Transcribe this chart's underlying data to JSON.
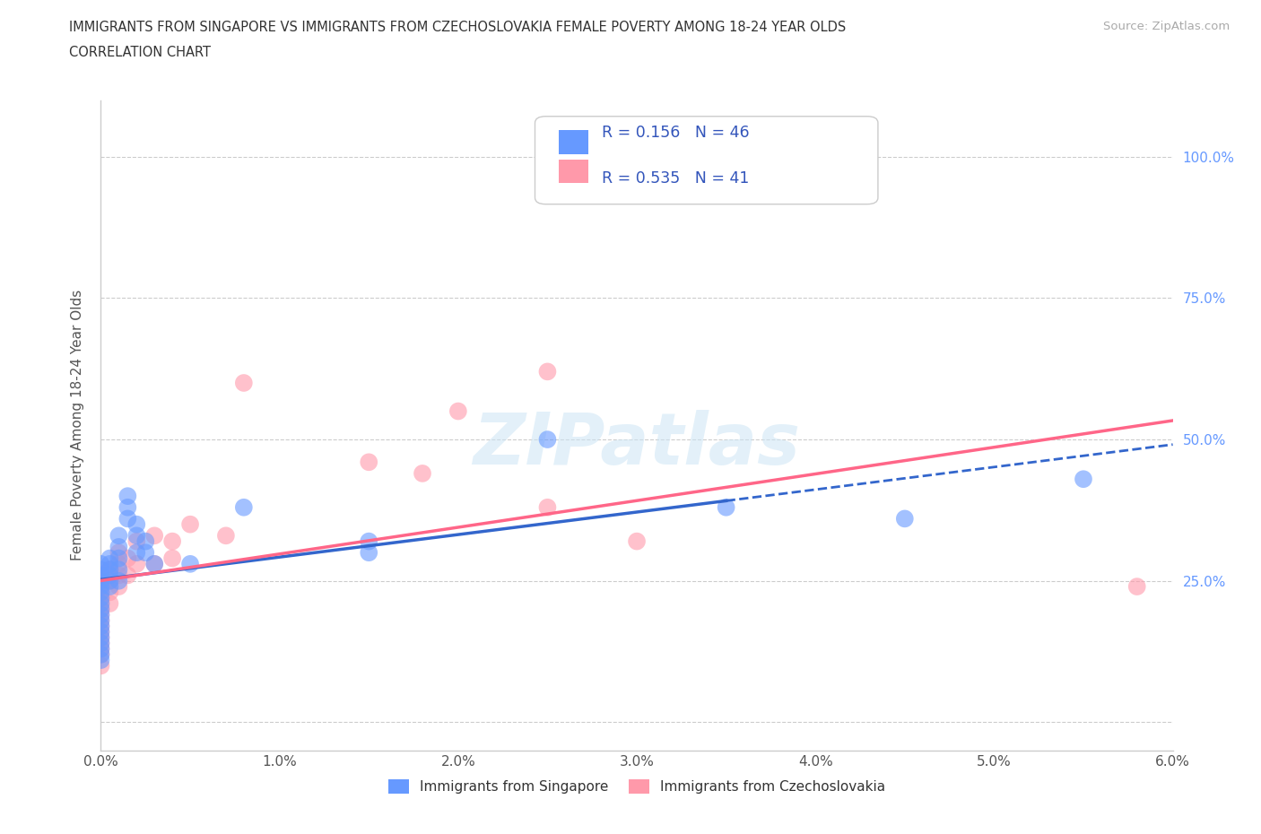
{
  "title_line1": "IMMIGRANTS FROM SINGAPORE VS IMMIGRANTS FROM CZECHOSLOVAKIA FEMALE POVERTY AMONG 18-24 YEAR OLDS",
  "title_line2": "CORRELATION CHART",
  "source_text": "Source: ZipAtlas.com",
  "ylabel": "Female Poverty Among 18-24 Year Olds",
  "xlim": [
    0.0,
    0.06
  ],
  "ylim": [
    -0.05,
    1.1
  ],
  "xtick_labels": [
    "0.0%",
    "1.0%",
    "2.0%",
    "3.0%",
    "4.0%",
    "5.0%",
    "6.0%"
  ],
  "xtick_values": [
    0.0,
    0.01,
    0.02,
    0.03,
    0.04,
    0.05,
    0.06
  ],
  "ytick_labels": [
    "0.0%",
    "25.0%",
    "50.0%",
    "75.0%",
    "100.0%"
  ],
  "ytick_values": [
    0.0,
    0.25,
    0.5,
    0.75,
    1.0
  ],
  "right_ytick_values": [
    1.0,
    0.75,
    0.5,
    0.25
  ],
  "right_ytick_labels": [
    "100.0%",
    "75.0%",
    "50.0%",
    "25.0%"
  ],
  "watermark": "ZIPatlas",
  "legend_singapore_label": "Immigrants from Singapore",
  "legend_czechoslovakia_label": "Immigrants from Czechoslovakia",
  "R_singapore": 0.156,
  "N_singapore": 46,
  "R_czechoslovakia": 0.535,
  "N_czechoslovakia": 41,
  "color_singapore": "#6699ff",
  "color_czechoslovakia": "#ff99aa",
  "color_singapore_line": "#3366cc",
  "color_czechoslovakia_line": "#ff6688",
  "singapore_x": [
    0.0,
    0.0,
    0.0,
    0.0,
    0.0,
    0.0,
    0.0,
    0.0,
    0.0,
    0.0,
    0.0,
    0.0,
    0.0,
    0.0,
    0.0,
    0.0,
    0.0,
    0.0,
    0.0005,
    0.0005,
    0.0005,
    0.0005,
    0.0005,
    0.0005,
    0.001,
    0.001,
    0.001,
    0.001,
    0.001,
    0.0015,
    0.0015,
    0.0015,
    0.002,
    0.002,
    0.002,
    0.0025,
    0.0025,
    0.003,
    0.005,
    0.008,
    0.015,
    0.015,
    0.025,
    0.035,
    0.045,
    0.055
  ],
  "singapore_y": [
    0.28,
    0.27,
    0.26,
    0.25,
    0.24,
    0.23,
    0.22,
    0.21,
    0.2,
    0.19,
    0.18,
    0.17,
    0.16,
    0.15,
    0.14,
    0.13,
    0.12,
    0.11,
    0.29,
    0.28,
    0.27,
    0.26,
    0.25,
    0.24,
    0.33,
    0.31,
    0.29,
    0.27,
    0.25,
    0.4,
    0.38,
    0.36,
    0.35,
    0.33,
    0.3,
    0.32,
    0.3,
    0.28,
    0.28,
    0.38,
    0.32,
    0.3,
    0.5,
    0.38,
    0.36,
    0.43
  ],
  "czechoslovakia_x": [
    0.0,
    0.0,
    0.0,
    0.0,
    0.0,
    0.0,
    0.0,
    0.0,
    0.0,
    0.0,
    0.0,
    0.0,
    0.0,
    0.0,
    0.0,
    0.0005,
    0.0005,
    0.0005,
    0.0005,
    0.001,
    0.001,
    0.001,
    0.001,
    0.0015,
    0.0015,
    0.002,
    0.002,
    0.003,
    0.003,
    0.004,
    0.004,
    0.005,
    0.007,
    0.008,
    0.015,
    0.018,
    0.02,
    0.025,
    0.025,
    0.03,
    0.058
  ],
  "czechoslovakia_y": [
    0.25,
    0.24,
    0.23,
    0.22,
    0.21,
    0.2,
    0.19,
    0.18,
    0.17,
    0.16,
    0.15,
    0.14,
    0.13,
    0.12,
    0.1,
    0.27,
    0.25,
    0.23,
    0.21,
    0.3,
    0.28,
    0.26,
    0.24,
    0.29,
    0.26,
    0.32,
    0.28,
    0.33,
    0.28,
    0.32,
    0.29,
    0.35,
    0.33,
    0.6,
    0.46,
    0.44,
    0.55,
    0.62,
    0.38,
    0.32,
    0.24
  ]
}
